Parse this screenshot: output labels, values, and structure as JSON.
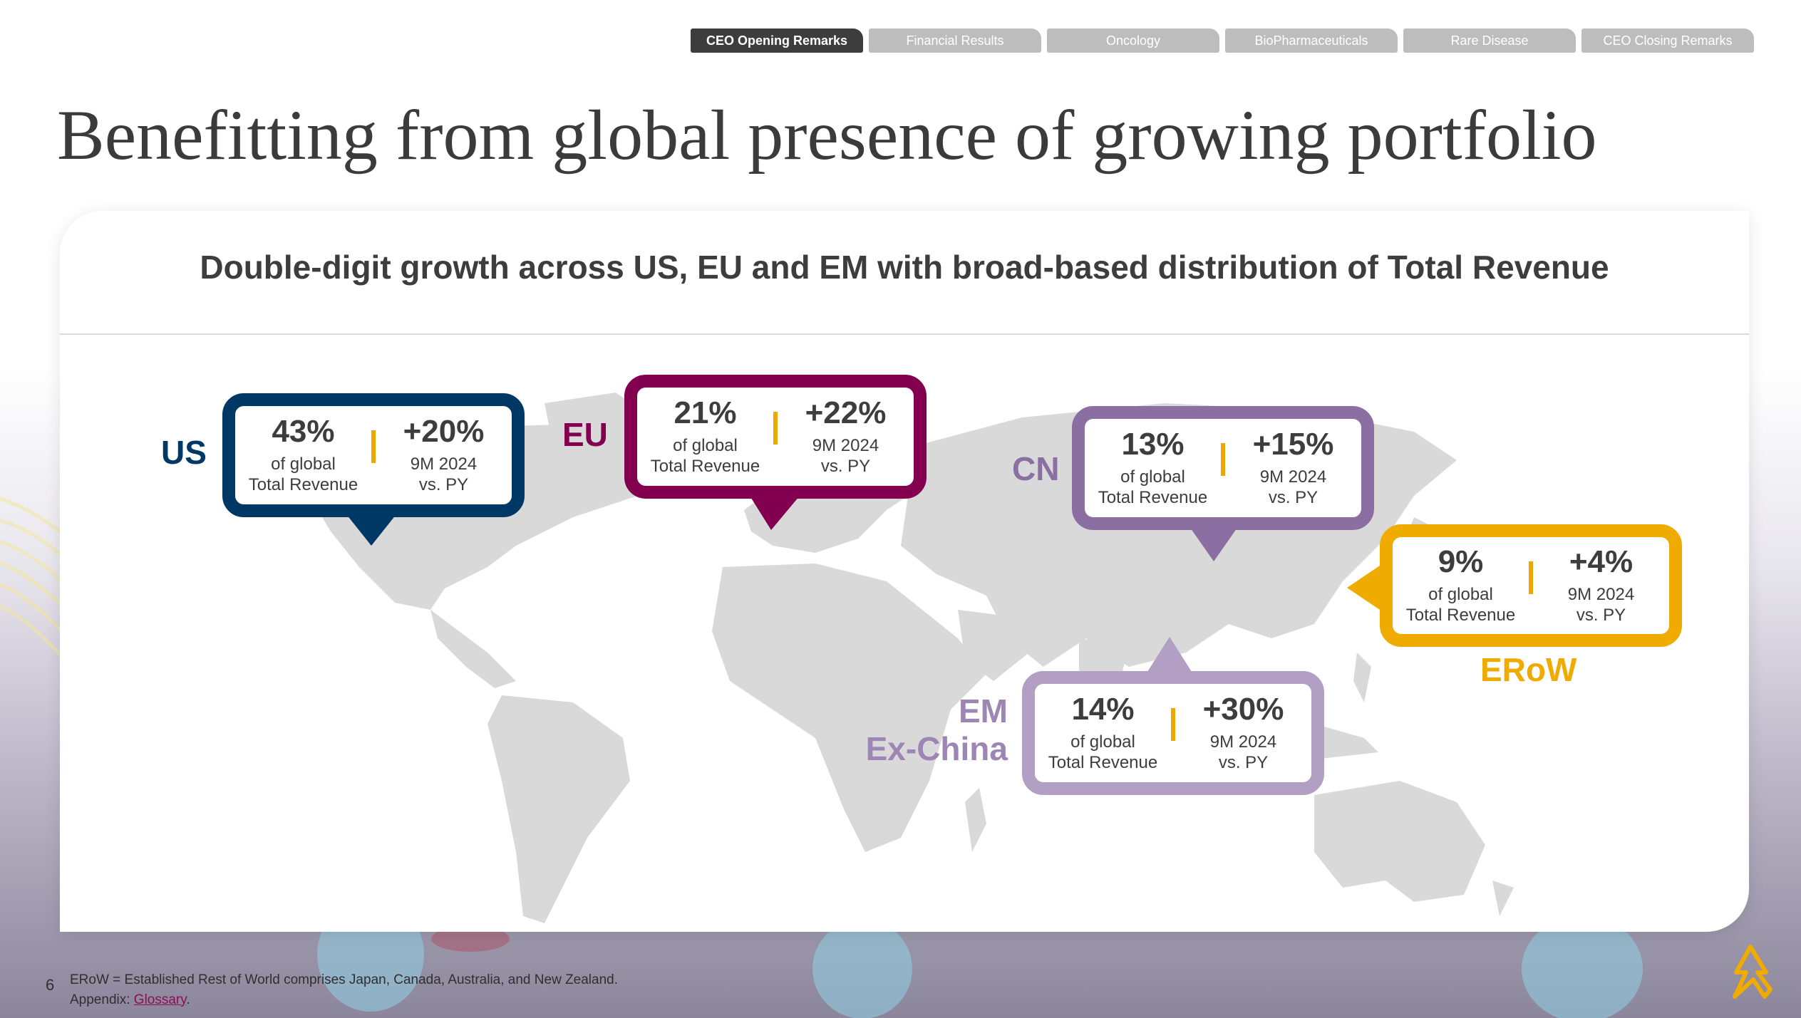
{
  "nav": {
    "tabs": [
      {
        "label": "CEO Opening Remarks",
        "active": true
      },
      {
        "label": "Financial Results",
        "active": false
      },
      {
        "label": "Oncology",
        "active": false
      },
      {
        "label": "BioPharmaceuticals",
        "active": false
      },
      {
        "label": "Rare Disease",
        "active": false
      },
      {
        "label": "CEO Closing Remarks",
        "active": false
      }
    ]
  },
  "title": "Benefitting from global presence of growing portfolio",
  "card": {
    "heading": "Double-digit growth across US, EU and EM with broad-based distribution of Total Revenue"
  },
  "regions": {
    "us": {
      "label": "US",
      "share": "43%",
      "share_caption_1": "of global",
      "share_caption_2": "Total Revenue",
      "growth": "+20%",
      "growth_caption_1": "9M 2024",
      "growth_caption_2": "vs. PY",
      "color": "#003865"
    },
    "eu": {
      "label": "EU",
      "share": "21%",
      "share_caption_1": "of global",
      "share_caption_2": "Total Revenue",
      "growth": "+22%",
      "growth_caption_1": "9M 2024",
      "growth_caption_2": "vs. PY",
      "color": "#830051"
    },
    "cn": {
      "label": "CN",
      "share": "13%",
      "share_caption_1": "of global",
      "share_caption_2": "Total Revenue",
      "growth": "+15%",
      "growth_caption_1": "9M 2024",
      "growth_caption_2": "vs. PY",
      "color": "#8c6fa2"
    },
    "erow": {
      "label": "ERoW",
      "share": "9%",
      "share_caption_1": "of global",
      "share_caption_2": "Total Revenue",
      "growth": "+4%",
      "growth_caption_1": "9M 2024",
      "growth_caption_2": "vs. PY",
      "color": "#f0ab00"
    },
    "em": {
      "label_1": "EM",
      "label_2": "Ex-China",
      "share": "14%",
      "share_caption_1": "of global",
      "share_caption_2": "Total Revenue",
      "growth": "+30%",
      "growth_caption_1": "9M 2024",
      "growth_caption_2": "vs. PY",
      "color": "#b39fc3",
      "label_color": "#9d86b4"
    }
  },
  "footer": {
    "page_number": "6",
    "note": "ERoW = Established Rest of World comprises Japan, Canada, Australia, and New Zealand.",
    "appendix_prefix": "Appendix: ",
    "appendix_link": "Glossary",
    "appendix_suffix": "."
  },
  "icons": {
    "logo": "company-logo-icon",
    "map": "world-map"
  },
  "colors": {
    "separator": "#f0a800",
    "map_land": "#d9d9d9",
    "title_text": "#3b3b3b"
  }
}
